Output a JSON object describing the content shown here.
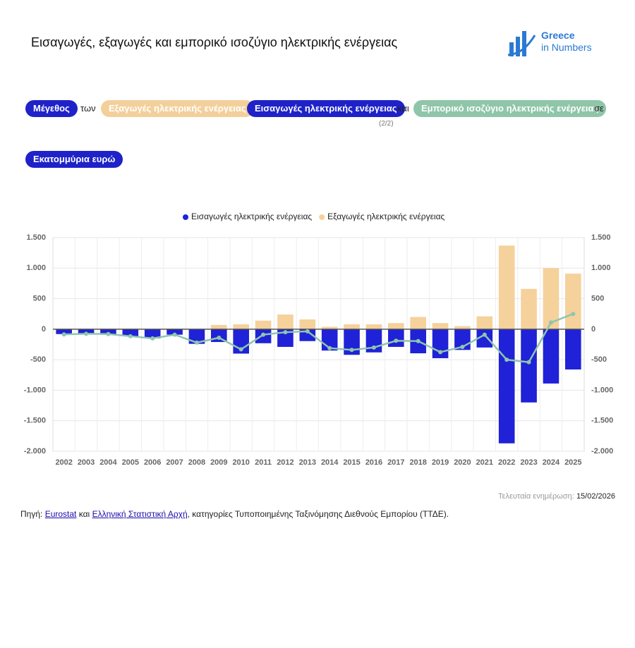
{
  "header": {
    "title": "Εισαγωγές, εξαγωγές και εμπορικό ισοζύγιο ηλεκτρικής ενέργειας",
    "logo_line1": "Greece",
    "logo_line2": "in Numbers"
  },
  "controls": {
    "measure": "Μέγεθος",
    "of": "των",
    "exports": "Εξαγωγές ηλεκτρικής ενέργειας",
    "imports": "Εισαγωγές ηλεκτρικής ενέργειας",
    "imports_page": "(2/2)",
    "and": "και",
    "balance": "Εμπορικό ισοζύγιο ηλεκτρικής ενέργειας",
    "in": "σε",
    "unit": "Εκατομμύρια ευρώ"
  },
  "chart_data": {
    "type": "bar",
    "categories": [
      "2002",
      "2003",
      "2004",
      "2005",
      "2006",
      "2007",
      "2008",
      "2009",
      "2010",
      "2011",
      "2012",
      "2013",
      "2014",
      "2015",
      "2016",
      "2017",
      "2018",
      "2019",
      "2020",
      "2021",
      "2022",
      "2023",
      "2024",
      "2025"
    ],
    "series": [
      {
        "name": "Εισαγωγές ηλεκτρικής ενέργειας",
        "color": "#1f22d6",
        "values": [
          -80,
          -70,
          -80,
          -115,
          -150,
          -90,
          -240,
          -210,
          -400,
          -230,
          -290,
          -195,
          -350,
          -420,
          -380,
          -290,
          -395,
          -475,
          -340,
          -300,
          -1870,
          -1200,
          -890,
          -660
        ]
      },
      {
        "name": "Εξαγωγές ηλεκτρικής ενέργειας",
        "color": "#f5d19b",
        "values": [
          5,
          5,
          10,
          10,
          5,
          10,
          5,
          70,
          80,
          140,
          240,
          160,
          40,
          80,
          80,
          100,
          200,
          100,
          50,
          210,
          1370,
          660,
          1000,
          910
        ]
      },
      {
        "type": "line",
        "color": "#8fc5ad",
        "values": [
          -85,
          -75,
          -80,
          -115,
          -150,
          -90,
          -220,
          -140,
          -330,
          -90,
          -50,
          -35,
          -310,
          -340,
          -300,
          -190,
          -195,
          -375,
          -290,
          -90,
          -500,
          -540,
          110,
          250
        ]
      }
    ],
    "ylim": [
      -2000,
      1500
    ],
    "yticks": [
      {
        "value": 1500,
        "label": "1.500"
      },
      {
        "value": 1000,
        "label": "1.000"
      },
      500,
      0,
      -500,
      {
        "value": -1000,
        "label": "-1.000"
      },
      {
        "value": -1500,
        "label": "-1.500"
      },
      {
        "value": -2000,
        "label": "-2.000"
      }
    ],
    "grid": true,
    "legend": "top"
  },
  "footer": {
    "updated_label": "Τελευταία ενημέρωση:",
    "updated_date": "15/02/2026",
    "source_label": "Πηγή:",
    "source1": "Eurostat",
    "and": "και",
    "source2": "Ελληνική Στατιστική Αρχή",
    "source_rest": ", κατηγορίες Τυποποιημένης Ταξινόμησης Διεθνούς Εμπορίου (ΤΤΔΕ)."
  }
}
